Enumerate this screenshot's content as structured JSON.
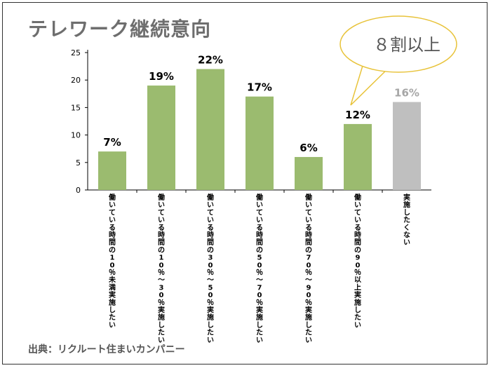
{
  "title": "テレワーク継続意向",
  "source": "出典：リクルート住まいカンパニー",
  "callout": {
    "text": "８割以上"
  },
  "colors": {
    "bar": "#9bbb6f",
    "bar_highlight": "#bfbfbf",
    "label_highlight": "#a6a6a6"
  },
  "chart_data": {
    "type": "bar",
    "categories": [
      "働いている時間の10％未満実施したい",
      "働いている時間の10％～30％実施したい",
      "働いている時間の30％～50％実施したい",
      "働いている時間の50％～70％実施したい",
      "働いている時間の70％～90％実施したい",
      "働いている時間の90％以上実施したい",
      "実施したくない"
    ],
    "values": [
      7,
      19,
      22,
      17,
      6,
      12,
      16
    ],
    "data_labels": [
      "7%",
      "19%",
      "22%",
      "17%",
      "6%",
      "12%",
      "16%"
    ],
    "ylim": [
      0,
      25
    ],
    "yticks": [
      "0",
      "5",
      "10",
      "15",
      "20",
      "25"
    ],
    "grid": false,
    "legend": "none"
  }
}
